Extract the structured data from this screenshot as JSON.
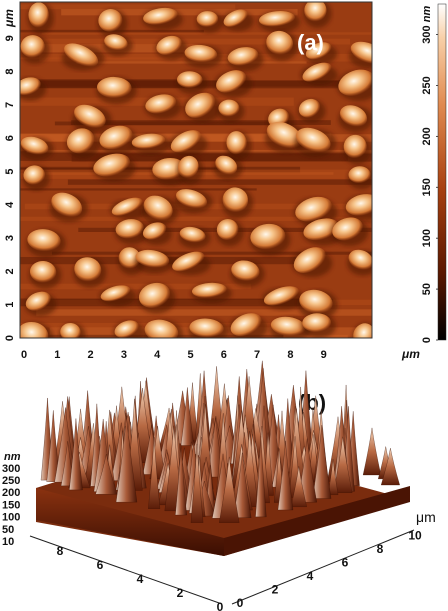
{
  "panel_a": {
    "label": "(a)",
    "y_unit": "μm",
    "x_unit": "μm",
    "y_ticks": [
      "0",
      "1",
      "2",
      "3",
      "4",
      "5",
      "6",
      "7",
      "8",
      "9"
    ],
    "x_ticks": [
      "0",
      "1",
      "2",
      "3",
      "4",
      "5",
      "6",
      "7",
      "8",
      "9"
    ]
  },
  "colorbar": {
    "unit": "nm",
    "ticks": [
      "0",
      "50",
      "100",
      "150",
      "200",
      "250",
      "300"
    ],
    "range": [
      0,
      330
    ]
  },
  "panel_b": {
    "label": "(b)",
    "z_unit": "nm",
    "z_ticks": [
      "10",
      "50",
      "100",
      "150",
      "200",
      "250",
      "300"
    ],
    "x_unit": "μm",
    "left_axis_ticks": [
      "8",
      "6",
      "4",
      "2",
      "0"
    ],
    "right_axis_ticks": [
      "0",
      "2",
      "4",
      "6",
      "8",
      "10"
    ]
  },
  "colors": {
    "dark": "#1a0500",
    "low": "#7a2a08",
    "mid": "#c05a20",
    "high": "#f0b070",
    "peak": "#fff4e0"
  }
}
